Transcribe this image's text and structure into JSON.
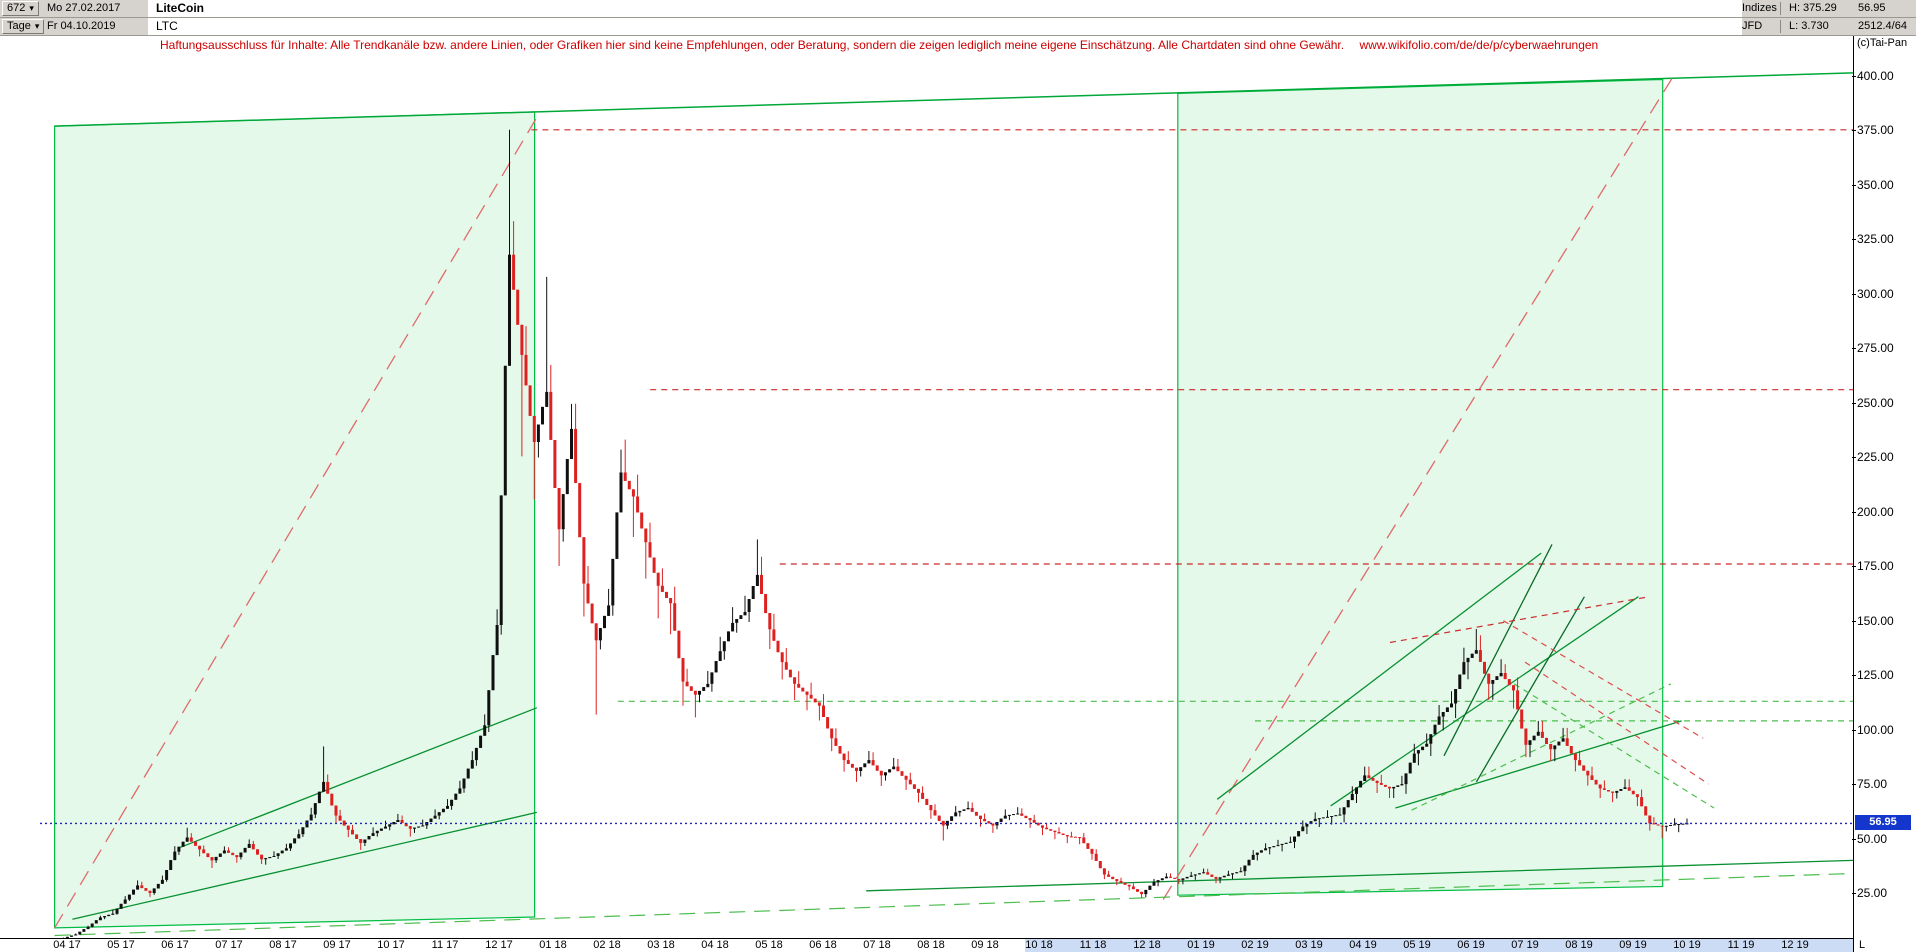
{
  "header": {
    "bars_count": "672",
    "start_date": "Mo 27.02.2017",
    "title": "LiteCoin",
    "period": "Tage",
    "end_date": "Fr 04.10.2019",
    "symbol": "LTC",
    "indizes_label": "Indizes",
    "source_label": "JFD",
    "high_label": "H: 375.29",
    "low_label": "L: 3.730",
    "last_price": "56.95",
    "range_info": "2512.4/64",
    "copyright": "(c)Tai-Pan"
  },
  "icons": {
    "dropdown": "▾"
  },
  "disclaimer": {
    "text": "Haftungsausschluss für Inhalte: Alle Trendkanäle bzw. andere Linien, oder Grafiken hier sind keine Empfehlungen, oder Beratung, sondern die zeigen lediglich meine eigene Einschätzung. Alle Chartdaten sind ohne Gewähr.",
    "url": "www.wikifolio.com/de/de/p/cyberwaehrungen"
  },
  "axis": {
    "y_labels": [
      "400.00",
      "375.00",
      "350.00",
      "325.00",
      "300.00",
      "275.00",
      "250.00",
      "225.00",
      "200.00",
      "175.00",
      "150.00",
      "125.00",
      "100.00",
      "75.00",
      "50.00",
      "25.00"
    ],
    "x_labels": [
      "04 17",
      "05 17",
      "06 17",
      "07 17",
      "08 17",
      "09 17",
      "10 17",
      "11 17",
      "12 17",
      "01 18",
      "02 18",
      "03 18",
      "04 18",
      "05 18",
      "06 18",
      "07 18",
      "08 18",
      "09 18",
      "10 18",
      "11 18",
      "12 18",
      "01 19",
      "02 19",
      "03 19",
      "04 19",
      "05 19",
      "06 19",
      "07 19",
      "08 19",
      "09 19",
      "10 19",
      "11 19",
      "12 19"
    ],
    "price_tag": "56.95",
    "scale_label": "L",
    "highlight_start_index": 18
  },
  "ui": {
    "header_bg": "#d6d3ce",
    "highlight_strip": "#cddcf5",
    "price_tag_bg": "#1536cc",
    "disclaimer_color": "#cc0000"
  },
  "chart_data": {
    "type": "candlestick",
    "instrument": "LiteCoin (LTC)",
    "timeframe": "Tage (daily), approximated here as weekly OHLC",
    "date_range": {
      "start": "Mo 27.02.2017",
      "end": "Fr 04.10.2019"
    },
    "bars_shown": 672,
    "current_price": 56.95,
    "period_high": 375.29,
    "period_low": 3.73,
    "ylim": [
      0,
      405
    ],
    "y_tick_step": 25,
    "colors": {
      "up": "#101010",
      "down": "#dd2020"
    },
    "candles_weekly_ohlc": [
      [
        3.9,
        4.6,
        3.7,
        4.3
      ],
      [
        4.3,
        6.4,
        4.2,
        6.0
      ],
      [
        6.0,
        10.0,
        5.8,
        9.5
      ],
      [
        9.5,
        14.6,
        9.2,
        13.8
      ],
      [
        13.8,
        17.4,
        13.0,
        15.5
      ],
      [
        15.5,
        23.6,
        15.0,
        22.0
      ],
      [
        22.0,
        30.8,
        21.4,
        28.5
      ],
      [
        28.5,
        30.2,
        23.2,
        25.0
      ],
      [
        25.0,
        33.0,
        24.2,
        31.0
      ],
      [
        31.0,
        46.5,
        30.2,
        44.0
      ],
      [
        44.0,
        55.0,
        42.5,
        50.5
      ],
      [
        50.5,
        52.5,
        41.8,
        45.0
      ],
      [
        45.0,
        46.8,
        36.5,
        40.0
      ],
      [
        40.0,
        46.4,
        38.8,
        44.5
      ],
      [
        44.5,
        46.0,
        38.9,
        41.5
      ],
      [
        41.5,
        49.6,
        40.4,
        47.5
      ],
      [
        47.5,
        48.9,
        38.3,
        40.5
      ],
      [
        40.5,
        44.2,
        38.0,
        42.0
      ],
      [
        42.0,
        47.6,
        40.6,
        45.5
      ],
      [
        45.5,
        54.2,
        44.3,
        52.0
      ],
      [
        52.0,
        64.1,
        50.7,
        61.0
      ],
      [
        61.0,
        92.3,
        59.4,
        76.0
      ],
      [
        76.0,
        79.4,
        56.9,
        60.5
      ],
      [
        60.5,
        63.2,
        50.6,
        54.0
      ],
      [
        54.0,
        56.2,
        44.8,
        48.0
      ],
      [
        48.0,
        55.1,
        46.6,
        52.5
      ],
      [
        52.5,
        58.2,
        50.9,
        55.5
      ],
      [
        55.5,
        61.3,
        53.8,
        58.5
      ],
      [
        58.5,
        60.6,
        50.9,
        54.5
      ],
      [
        54.5,
        58.7,
        52.6,
        56.0
      ],
      [
        56.0,
        63.4,
        54.4,
        60.5
      ],
      [
        60.5,
        68.1,
        58.8,
        65.0
      ],
      [
        65.0,
        76.5,
        63.2,
        73.0
      ],
      [
        73.0,
        90.1,
        71.0,
        86.0
      ],
      [
        86.0,
        107.0,
        83.4,
        102.0
      ],
      [
        102.0,
        155.2,
        98.9,
        148.0
      ],
      [
        148.0,
        375.3,
        143.6,
        318.0
      ],
      [
        318.0,
        333.4,
        225.4,
        272.0
      ],
      [
        272.0,
        285.2,
        205.6,
        232.0
      ],
      [
        232.0,
        307.8,
        224.9,
        255.0
      ],
      [
        255.0,
        267.4,
        175.1,
        192.0
      ],
      [
        192.0,
        249.5,
        186.3,
        238.0
      ],
      [
        238.0,
        249.6,
        151.9,
        167.0
      ],
      [
        167.0,
        175.1,
        106.9,
        141.0
      ],
      [
        141.0,
        164.6,
        136.8,
        157.0
      ],
      [
        157.0,
        228.5,
        152.3,
        218.0
      ],
      [
        218.0,
        233.1,
        188.4,
        207.0
      ],
      [
        207.0,
        217.0,
        169.3,
        186.0
      ],
      [
        186.0,
        195.0,
        151.1,
        166.0
      ],
      [
        166.0,
        174.0,
        143.8,
        158.0
      ],
      [
        158.0,
        165.6,
        111.0,
        122.0
      ],
      [
        122.0,
        127.9,
        105.6,
        116.0
      ],
      [
        116.0,
        126.9,
        112.6,
        121.0
      ],
      [
        121.0,
        142.6,
        117.4,
        136.0
      ],
      [
        136.0,
        156.2,
        132.1,
        149.0
      ],
      [
        149.0,
        161.4,
        144.5,
        154.0
      ],
      [
        154.0,
        187.3,
        149.4,
        171.0
      ],
      [
        171.0,
        179.3,
        137.0,
        146.0
      ],
      [
        146.0,
        153.1,
        123.0,
        131.0
      ],
      [
        131.0,
        137.4,
        113.6,
        121.0
      ],
      [
        121.0,
        126.8,
        108.9,
        116.0
      ],
      [
        116.0,
        121.6,
        104.2,
        111.0
      ],
      [
        111.0,
        116.3,
        90.1,
        96.0
      ],
      [
        96.0,
        100.6,
        80.7,
        86.0
      ],
      [
        86.0,
        90.1,
        76.0,
        81.0
      ],
      [
        81.0,
        90.2,
        78.5,
        86.0
      ],
      [
        86.0,
        89.6,
        74.1,
        79.0
      ],
      [
        79.0,
        87.0,
        76.6,
        83.0
      ],
      [
        83.0,
        86.5,
        72.3,
        77.0
      ],
      [
        77.0,
        80.2,
        66.6,
        71.0
      ],
      [
        71.0,
        74.0,
        59.1,
        63.0
      ],
      [
        63.0,
        65.7,
        49.1,
        56.0
      ],
      [
        56.0,
        64.9,
        54.3,
        62.0
      ],
      [
        62.0,
        67.0,
        60.1,
        64.0
      ],
      [
        64.0,
        66.6,
        55.4,
        59.0
      ],
      [
        59.0,
        61.5,
        52.6,
        56.0
      ],
      [
        56.0,
        63.4,
        54.3,
        60.5
      ],
      [
        60.5,
        64.4,
        58.4,
        61.5
      ],
      [
        61.5,
        63.9,
        54.9,
        58.5
      ],
      [
        58.5,
        60.9,
        51.6,
        55.0
      ],
      [
        55.0,
        57.2,
        49.7,
        53.0
      ],
      [
        53.0,
        55.1,
        47.9,
        51.0
      ],
      [
        51.0,
        53.1,
        47.4,
        50.5
      ],
      [
        50.5,
        52.6,
        40.3,
        43.0
      ],
      [
        43.0,
        45.1,
        31.4,
        33.5
      ],
      [
        33.5,
        35.2,
        28.6,
        30.5
      ],
      [
        30.5,
        32.0,
        26.2,
        28.0
      ],
      [
        28.0,
        29.4,
        22.9,
        24.5
      ],
      [
        24.5,
        31.5,
        23.0,
        30.0
      ],
      [
        30.0,
        34.1,
        28.1,
        32.5
      ],
      [
        32.5,
        34.0,
        29.1,
        31.0
      ],
      [
        31.0,
        34.7,
        29.0,
        33.0
      ],
      [
        33.0,
        36.2,
        31.0,
        34.5
      ],
      [
        34.5,
        36.1,
        29.5,
        31.5
      ],
      [
        31.5,
        35.2,
        29.5,
        33.5
      ],
      [
        33.5,
        36.8,
        31.4,
        35.0
      ],
      [
        35.0,
        44.7,
        32.8,
        42.5
      ],
      [
        42.5,
        47.8,
        39.9,
        45.5
      ],
      [
        45.5,
        49.4,
        42.7,
        47.0
      ],
      [
        47.0,
        50.9,
        44.1,
        48.5
      ],
      [
        48.5,
        58.3,
        45.6,
        55.5
      ],
      [
        55.5,
        62.0,
        52.1,
        59.0
      ],
      [
        59.0,
        63.0,
        55.3,
        60.0
      ],
      [
        60.0,
        64.1,
        56.4,
        61.0
      ],
      [
        61.0,
        74.0,
        57.4,
        70.5
      ],
      [
        70.5,
        83.0,
        66.3,
        79.0
      ],
      [
        79.0,
        83.0,
        70.9,
        75.5
      ],
      [
        75.5,
        79.3,
        68.6,
        73.0
      ],
      [
        73.0,
        78.8,
        68.6,
        75.0
      ],
      [
        75.0,
        93.5,
        70.5,
        89.0
      ],
      [
        89.0,
        98.2,
        83.6,
        93.5
      ],
      [
        93.5,
        111.3,
        87.9,
        106.0
      ],
      [
        106.0,
        117.6,
        99.6,
        112.0
      ],
      [
        112.0,
        137.6,
        105.3,
        131.0
      ],
      [
        131.0,
        146.2,
        123.1,
        136.5
      ],
      [
        136.5,
        143.3,
        113.7,
        121.0
      ],
      [
        121.0,
        132.3,
        113.7,
        126.0
      ],
      [
        126.0,
        130.0,
        109.7,
        118.0
      ],
      [
        118.0,
        123.9,
        87.4,
        93.0
      ],
      [
        93.0,
        104.0,
        87.4,
        99.0
      ],
      [
        99.0,
        103.9,
        85.5,
        91.0
      ],
      [
        91.0,
        100.8,
        85.5,
        96.0
      ],
      [
        96.0,
        100.8,
        80.8,
        86.0
      ],
      [
        86.0,
        90.3,
        74.3,
        79.0
      ],
      [
        79.0,
        83.0,
        68.6,
        73.0
      ],
      [
        73.0,
        76.7,
        66.7,
        71.0
      ],
      [
        71.0,
        77.2,
        68.4,
        73.5
      ],
      [
        73.5,
        77.2,
        64.9,
        69.0
      ],
      [
        69.0,
        72.5,
        53.6,
        57.0
      ],
      [
        57.0,
        59.8,
        50.1,
        55.5
      ],
      [
        55.5,
        59.3,
        53.3,
        56.5
      ],
      [
        56.5,
        59.2,
        52.9,
        56.95
      ]
    ],
    "annotations": {
      "boxes": [
        {
          "name": "trend-channel-2017",
          "points": [
            [
              -0.23,
              377
            ],
            [
              8.66,
              383.5
            ],
            [
              8.66,
              14
            ],
            [
              -0.23,
              9
            ]
          ],
          "fill": "rgba(0,200,60,0.10)",
          "stroke": "#00bd44"
        },
        {
          "name": "trend-channel-2019",
          "points": [
            [
              20.57,
              392
            ],
            [
              29.55,
              398.4
            ],
            [
              29.55,
              28
            ],
            [
              20.57,
              24
            ]
          ],
          "fill": "rgba(0,200,60,0.10)",
          "stroke": "#00bd44"
        }
      ],
      "lines": [
        {
          "name": "upper-channel-line",
          "p1": [
            -0.23,
            377
          ],
          "p2": [
            33.2,
            401.5
          ],
          "color": "#00a838",
          "style": "solid",
          "w": 1.5
        },
        {
          "name": "red-trend-2017",
          "p1": [
            -0.23,
            9
          ],
          "p2": [
            8.75,
            383
          ],
          "color": "#e06a6a",
          "style": "longdash",
          "w": 1.3
        },
        {
          "name": "red-trend-2019",
          "p1": [
            20.3,
            22
          ],
          "p2": [
            29.75,
            400
          ],
          "color": "#e06a6a",
          "style": "longdash",
          "w": 1.3
        },
        {
          "name": "resistance-375",
          "p1": [
            8.6,
            375.3
          ],
          "p2": [
            33.2,
            375.3
          ],
          "color": "#cc2b2b",
          "style": "dash",
          "w": 1.2
        },
        {
          "name": "resistance-256",
          "p1": [
            10.8,
            256
          ],
          "p2": [
            33.2,
            256
          ],
          "color": "#cc2b2b",
          "style": "dash",
          "w": 1.2
        },
        {
          "name": "resistance-176",
          "p1": [
            13.2,
            176
          ],
          "p2": [
            33.2,
            176
          ],
          "color": "#cc2b2b",
          "style": "dash",
          "w": 1.2
        },
        {
          "name": "support-113",
          "p1": [
            10.2,
            113
          ],
          "p2": [
            33.2,
            113
          ],
          "color": "#4dbd4d",
          "style": "dash",
          "w": 1.2
        },
        {
          "name": "support-104",
          "p1": [
            22.0,
            104
          ],
          "p2": [
            33.2,
            104
          ],
          "color": "#4dbd4d",
          "style": "dash",
          "w": 1.2
        },
        {
          "name": "support-2017-lower",
          "p1": [
            0.1,
            13
          ],
          "p2": [
            8.7,
            62
          ],
          "color": "#089030",
          "style": "solid",
          "w": 1.3
        },
        {
          "name": "support-2017-upper",
          "p1": [
            2.1,
            46
          ],
          "p2": [
            8.7,
            110
          ],
          "color": "#089030",
          "style": "solid",
          "w": 1.3
        },
        {
          "name": "long-bottom-support",
          "p1": [
            14.8,
            26
          ],
          "p2": [
            33.1,
            40
          ],
          "color": "#089030",
          "style": "solid",
          "w": 1.3
        },
        {
          "name": "long-bottom-support-dashed",
          "p1": [
            -0.23,
            5.5
          ],
          "p2": [
            33.1,
            34
          ],
          "color": "#4dbd4d",
          "style": "longdash",
          "w": 1.2
        },
        {
          "name": "trendline-2019-a",
          "p1": [
            21.3,
            68
          ],
          "p2": [
            27.3,
            181
          ],
          "color": "#089030",
          "style": "solid",
          "w": 1.3
        },
        {
          "name": "trendline-2019-b",
          "p1": [
            23.4,
            65
          ],
          "p2": [
            29.1,
            161
          ],
          "color": "#089030",
          "style": "solid",
          "w": 1.3
        },
        {
          "name": "trendline-2019-c",
          "p1": [
            24.6,
            64
          ],
          "p2": [
            29.9,
            104
          ],
          "color": "#089030",
          "style": "solid",
          "w": 1.3
        },
        {
          "name": "steep-channel-a",
          "p1": [
            25.5,
            88
          ],
          "p2": [
            27.5,
            185
          ],
          "color": "#0a6a28",
          "style": "solid",
          "w": 1.3
        },
        {
          "name": "steep-channel-b",
          "p1": [
            26.1,
            76
          ],
          "p2": [
            28.1,
            161
          ],
          "color": "#0a6a28",
          "style": "solid",
          "w": 1.3
        },
        {
          "name": "peak-resistance-red",
          "p1": [
            24.5,
            140
          ],
          "p2": [
            29.3,
            161
          ],
          "color": "#cc2b2b",
          "style": "dash",
          "w": 1.2
        },
        {
          "name": "falling-red-1",
          "p1": [
            26.6,
            150
          ],
          "p2": [
            30.3,
            96
          ],
          "color": "#dd4d4d",
          "style": "dash",
          "w": 1.2
        },
        {
          "name": "falling-red-2",
          "p1": [
            27.0,
            131
          ],
          "p2": [
            30.4,
            75
          ],
          "color": "#dd4d4d",
          "style": "dash",
          "w": 1.2
        },
        {
          "name": "triangle-rise-green",
          "p1": [
            24.9,
            63
          ],
          "p2": [
            29.7,
            121
          ],
          "color": "#4dbd4d",
          "style": "dash",
          "w": 1.2
        },
        {
          "name": "triangle-fall-green",
          "p1": [
            26.8,
            121
          ],
          "p2": [
            30.5,
            64
          ],
          "color": "#4dbd4d",
          "style": "dash",
          "w": 1.2
        },
        {
          "name": "current-price-line",
          "p1": [
            -0.5,
            56.95
          ],
          "p2": [
            33.25,
            56.95
          ],
          "color": "#2222bb",
          "style": "dot",
          "w": 1.4,
          "above": true
        }
      ]
    }
  }
}
